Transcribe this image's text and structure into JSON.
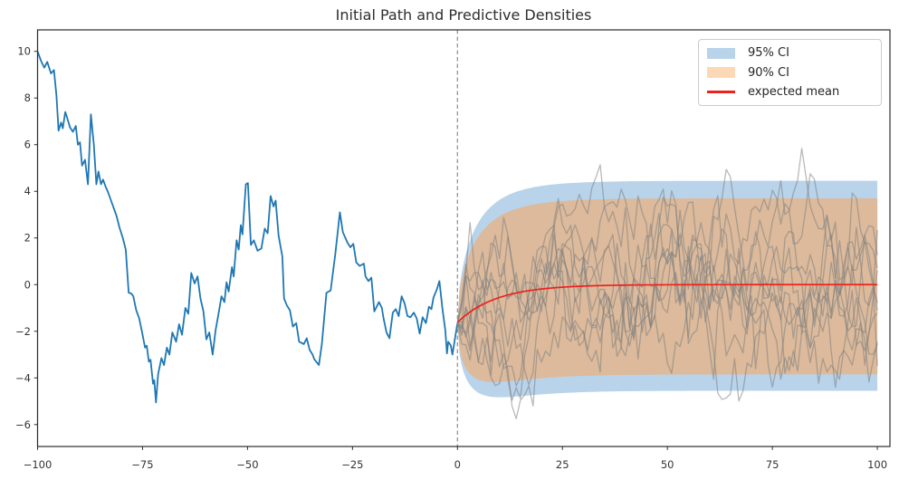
{
  "chart_data": {
    "type": "line",
    "title": "Initial Path and Predictive Densities",
    "xlabel": "",
    "ylabel": "",
    "xlim": [
      -100,
      103
    ],
    "ylim": [
      -6.94,
      10.92
    ],
    "x_ticks": [
      -100,
      -75,
      -50,
      -25,
      0,
      25,
      50,
      75,
      100
    ],
    "y_ticks": [
      -6,
      -4,
      -2,
      0,
      2,
      4,
      6,
      8,
      10
    ],
    "grid": false,
    "axis_color": "#2b2b2b",
    "tick_label_color": "#333333",
    "legend_position": "upper right",
    "legend": [
      {
        "label": "95% CI",
        "type": "patch",
        "color": "#b8d3ea"
      },
      {
        "label": "90% CI",
        "type": "patch",
        "color": "#fcd8b5"
      },
      {
        "label": "expected mean",
        "type": "line",
        "color": "#ee221c"
      }
    ],
    "vline": {
      "x": 0,
      "color": "#8c8c8c",
      "style": "dashed"
    },
    "initial_path": {
      "name": "initial-path",
      "color": "#1f77b4",
      "width": 1.8,
      "points": [
        [
          -100,
          10.0
        ],
        [
          -99.2,
          9.6
        ],
        [
          -98.4,
          9.3
        ],
        [
          -97.7,
          9.55
        ],
        [
          -96.8,
          9.05
        ],
        [
          -96.1,
          9.2
        ],
        [
          -95.5,
          8.1
        ],
        [
          -95.0,
          6.6
        ],
        [
          -94.4,
          6.95
        ],
        [
          -94.0,
          6.7
        ],
        [
          -93.4,
          7.4
        ],
        [
          -92.7,
          7.0
        ],
        [
          -92.3,
          6.75
        ],
        [
          -91.6,
          6.55
        ],
        [
          -90.9,
          6.8
        ],
        [
          -90.4,
          6.0
        ],
        [
          -89.9,
          6.1
        ],
        [
          -89.4,
          5.1
        ],
        [
          -88.7,
          5.35
        ],
        [
          -88.0,
          4.3
        ],
        [
          -87.3,
          7.3
        ],
        [
          -86.6,
          6.0
        ],
        [
          -86.0,
          4.3
        ],
        [
          -85.5,
          4.85
        ],
        [
          -84.9,
          4.3
        ],
        [
          -84.4,
          4.5
        ],
        [
          -83.8,
          4.2
        ],
        [
          -83.3,
          4.0
        ],
        [
          -82.6,
          3.65
        ],
        [
          -81.9,
          3.3
        ],
        [
          -81.2,
          2.95
        ],
        [
          -80.5,
          2.45
        ],
        [
          -79.7,
          2.0
        ],
        [
          -79.0,
          1.5
        ],
        [
          -78.3,
          -0.35
        ],
        [
          -77.7,
          -0.38
        ],
        [
          -77.2,
          -0.5
        ],
        [
          -76.5,
          -1.1
        ],
        [
          -75.8,
          -1.45
        ],
        [
          -75.1,
          -2.05
        ],
        [
          -74.4,
          -2.7
        ],
        [
          -74.0,
          -2.62
        ],
        [
          -73.5,
          -3.3
        ],
        [
          -73.1,
          -3.22
        ],
        [
          -72.5,
          -4.25
        ],
        [
          -72.2,
          -4.1
        ],
        [
          -71.8,
          -5.05
        ],
        [
          -71.3,
          -3.85
        ],
        [
          -70.5,
          -3.15
        ],
        [
          -69.9,
          -3.45
        ],
        [
          -69.2,
          -2.7
        ],
        [
          -68.6,
          -3.0
        ],
        [
          -67.9,
          -2.05
        ],
        [
          -67.0,
          -2.45
        ],
        [
          -66.3,
          -1.7
        ],
        [
          -65.6,
          -2.15
        ],
        [
          -64.8,
          -1.0
        ],
        [
          -64.1,
          -1.25
        ],
        [
          -63.4,
          0.5
        ],
        [
          -62.6,
          0.05
        ],
        [
          -61.9,
          0.35
        ],
        [
          -61.2,
          -0.6
        ],
        [
          -60.5,
          -1.15
        ],
        [
          -59.8,
          -2.35
        ],
        [
          -59.1,
          -2.05
        ],
        [
          -58.3,
          -3.0
        ],
        [
          -57.6,
          -1.95
        ],
        [
          -56.9,
          -1.25
        ],
        [
          -56.2,
          -0.5
        ],
        [
          -55.5,
          -0.75
        ],
        [
          -55.0,
          0.1
        ],
        [
          -54.5,
          -0.3
        ],
        [
          -53.7,
          0.75
        ],
        [
          -53.3,
          0.35
        ],
        [
          -52.6,
          1.9
        ],
        [
          -52.1,
          1.5
        ],
        [
          -51.6,
          2.55
        ],
        [
          -51.2,
          2.15
        ],
        [
          -50.4,
          4.3
        ],
        [
          -49.9,
          4.35
        ],
        [
          -49.2,
          1.7
        ],
        [
          -48.5,
          1.9
        ],
        [
          -47.6,
          1.45
        ],
        [
          -46.7,
          1.55
        ],
        [
          -45.9,
          2.4
        ],
        [
          -45.2,
          2.2
        ],
        [
          -44.5,
          3.8
        ],
        [
          -43.8,
          3.35
        ],
        [
          -43.3,
          3.6
        ],
        [
          -42.6,
          2.1
        ],
        [
          -41.7,
          1.2
        ],
        [
          -41.3,
          -0.6
        ],
        [
          -40.6,
          -0.9
        ],
        [
          -39.9,
          -1.1
        ],
        [
          -39.2,
          -1.8
        ],
        [
          -38.4,
          -1.65
        ],
        [
          -37.7,
          -2.45
        ],
        [
          -36.6,
          -2.55
        ],
        [
          -35.9,
          -2.3
        ],
        [
          -35.2,
          -2.8
        ],
        [
          -34.5,
          -3.0
        ],
        [
          -34.1,
          -3.2
        ],
        [
          -33.0,
          -3.45
        ],
        [
          -32.3,
          -2.55
        ],
        [
          -31.2,
          -0.35
        ],
        [
          -30.2,
          -0.25
        ],
        [
          -29.1,
          1.3
        ],
        [
          -28.0,
          3.1
        ],
        [
          -27.3,
          2.25
        ],
        [
          -26.2,
          1.8
        ],
        [
          -25.5,
          1.6
        ],
        [
          -24.8,
          1.75
        ],
        [
          -24.1,
          0.95
        ],
        [
          -23.3,
          0.8
        ],
        [
          -22.3,
          0.9
        ],
        [
          -21.9,
          0.35
        ],
        [
          -21.2,
          0.15
        ],
        [
          -20.5,
          0.3
        ],
        [
          -19.8,
          -1.15
        ],
        [
          -18.7,
          -0.75
        ],
        [
          -18.0,
          -1.0
        ],
        [
          -17.6,
          -1.45
        ],
        [
          -16.9,
          -2.05
        ],
        [
          -16.2,
          -2.3
        ],
        [
          -15.4,
          -1.2
        ],
        [
          -14.7,
          -1.05
        ],
        [
          -14.0,
          -1.35
        ],
        [
          -13.3,
          -0.5
        ],
        [
          -12.6,
          -0.8
        ],
        [
          -11.9,
          -1.35
        ],
        [
          -11.2,
          -1.4
        ],
        [
          -10.4,
          -1.2
        ],
        [
          -9.7,
          -1.45
        ],
        [
          -9.0,
          -2.1
        ],
        [
          -8.3,
          -1.4
        ],
        [
          -7.5,
          -1.65
        ],
        [
          -6.8,
          -0.95
        ],
        [
          -6.2,
          -1.05
        ],
        [
          -5.7,
          -0.55
        ],
        [
          -4.9,
          -0.2
        ],
        [
          -4.3,
          0.15
        ],
        [
          -3.6,
          -1.0
        ],
        [
          -2.9,
          -1.95
        ],
        [
          -2.5,
          -2.95
        ],
        [
          -2.2,
          -2.45
        ],
        [
          -1.6,
          -2.6
        ],
        [
          -1.2,
          -3.0
        ],
        [
          0,
          -1.65
        ]
      ]
    },
    "forecast": {
      "x_start": 0,
      "x_end": 100,
      "expected_mean": {
        "start": -1.62,
        "asymptote": 0.0,
        "tau": 9.3,
        "color": "#ee221c",
        "width": 1.7
      },
      "ci95": {
        "upper": 4.45,
        "lower": -4.55,
        "fill": "#b8d3ea"
      },
      "ci90": {
        "upper": 3.7,
        "lower": -3.85,
        "fill": "#dcba9b"
      },
      "band_growth": "sqrt(1-exp(-2x/tau))",
      "sample_paths": {
        "count": 10,
        "start": -1.62,
        "theta": 0.1,
        "sigma": 1.0,
        "seed": 20,
        "color": "#7f7f7f",
        "opacity": 0.55,
        "width": 1.3
      }
    }
  }
}
